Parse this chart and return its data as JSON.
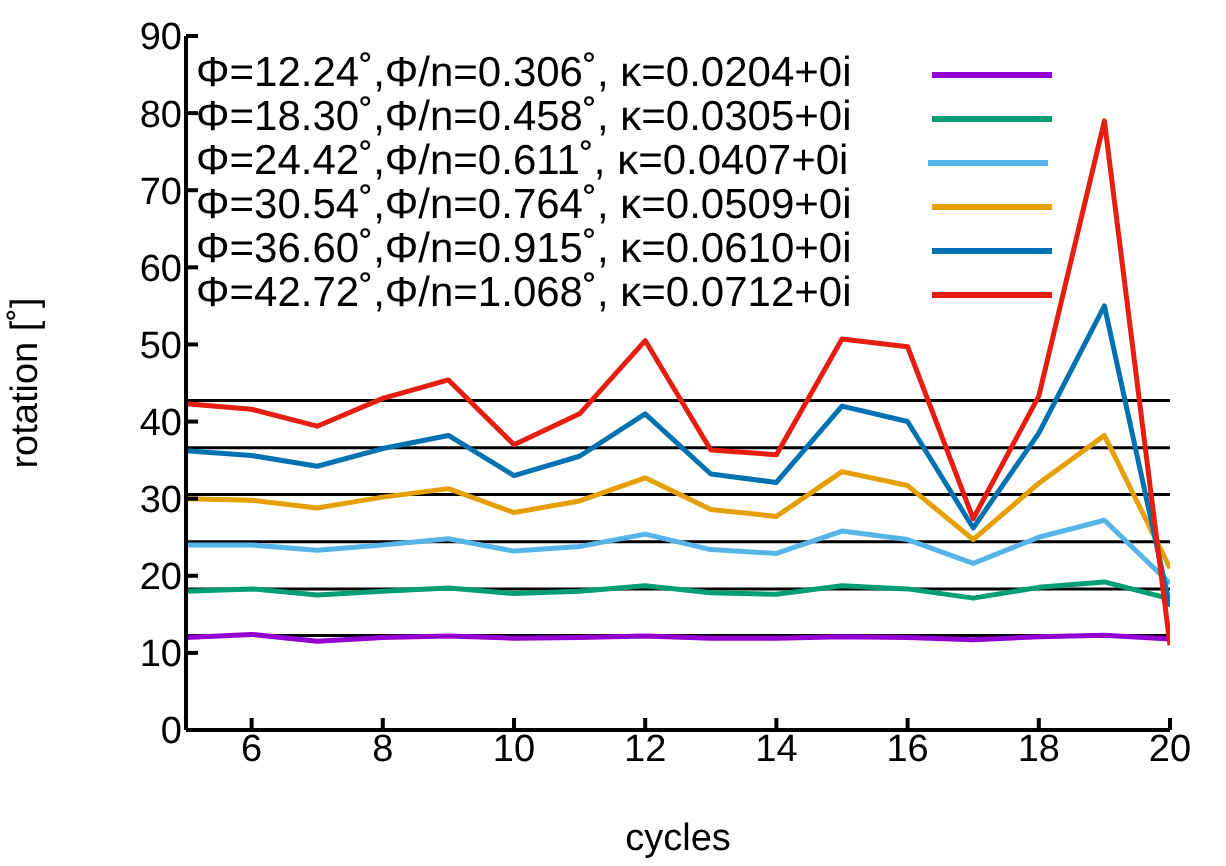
{
  "chart_data": {
    "type": "line",
    "xlabel": "cycles",
    "ylabel": "rotation [˚]",
    "x": [
      5,
      6,
      7,
      8,
      9,
      10,
      11,
      12,
      13,
      14,
      15,
      16,
      17,
      18,
      19,
      20
    ],
    "xlim": [
      5,
      20
    ],
    "xticks": [
      6,
      8,
      10,
      12,
      14,
      16,
      18,
      20
    ],
    "ylim": [
      0,
      90
    ],
    "yticks": [
      0,
      10,
      20,
      30,
      40,
      50,
      60,
      70,
      80,
      90
    ],
    "grid": false,
    "legend": "top",
    "marker": "none",
    "line_style": "solid",
    "series": [
      {
        "name": "Φ=12.24˚,Φ/n=0.306˚, κ=0.0204+0i",
        "color": "#9400d3",
        "values": [
          12,
          12.4,
          11.5,
          12,
          12.2,
          11.9,
          12,
          12.2,
          11.9,
          11.9,
          12.1,
          12,
          11.7,
          12.1,
          12.3,
          11.8
        ]
      },
      {
        "name": "Φ=18.30˚,Φ/n=0.458˚, κ=0.0305+0i",
        "color": "#009e73",
        "values": [
          18,
          18.3,
          17.5,
          18,
          18.4,
          17.7,
          18,
          18.7,
          17.8,
          17.6,
          18.7,
          18.3,
          17.1,
          18.5,
          19.2,
          17
        ]
      },
      {
        "name": "Φ=24.42˚,Φ/n=0.611˚, κ=0.0407+0i",
        "color": "#56b4e9",
        "values": [
          24,
          24,
          23.3,
          24,
          24.8,
          23.2,
          23.8,
          25.4,
          23.4,
          22.9,
          25.8,
          24.7,
          21.6,
          25,
          27.2,
          19
        ]
      },
      {
        "name": "Φ=30.54˚,Φ/n=0.764˚, κ=0.0509+0i",
        "color": "#e69f00",
        "values": [
          30,
          29.8,
          28.8,
          30.2,
          31.3,
          28.2,
          29.7,
          32.7,
          28.6,
          27.7,
          33.5,
          31.7,
          24.7,
          32,
          38.2,
          21
        ]
      },
      {
        "name": "Φ=36.60˚,Φ/n=0.915˚, κ=0.0610+0i",
        "color": "#0072b2",
        "values": [
          36.2,
          35.6,
          34.2,
          36.5,
          38.2,
          33,
          35.5,
          41,
          33.2,
          32.1,
          42,
          40,
          26.2,
          38.5,
          55,
          16
        ]
      },
      {
        "name": "Φ=42.72˚,Φ/n=1.068˚, κ=0.0712+0i",
        "color": "#e51e10",
        "values": [
          42.3,
          41.6,
          39.4,
          43,
          45.4,
          37,
          41,
          50.5,
          36.3,
          35.7,
          50.7,
          49.7,
          27.4,
          43.3,
          79,
          11
        ]
      }
    ],
    "ref_lines": [
      {
        "axis": "y",
        "value": 12.24,
        "color": "#000000"
      },
      {
        "axis": "y",
        "value": 18.3,
        "color": "#000000"
      },
      {
        "axis": "y",
        "value": 24.42,
        "color": "#000000"
      },
      {
        "axis": "y",
        "value": 30.54,
        "color": "#000000"
      },
      {
        "axis": "y",
        "value": 36.6,
        "color": "#000000"
      },
      {
        "axis": "y",
        "value": 42.72,
        "color": "#000000"
      }
    ]
  }
}
